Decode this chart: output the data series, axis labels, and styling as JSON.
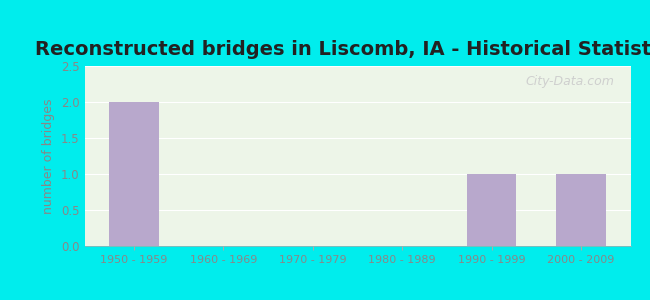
{
  "title": "Reconstructed bridges in Liscomb, IA - Historical Statistics",
  "categories": [
    "1950 - 1959",
    "1960 - 1969",
    "1970 - 1979",
    "1980 - 1989",
    "1990 - 1999",
    "2000 - 2009"
  ],
  "values": [
    2,
    0,
    0,
    0,
    1,
    1
  ],
  "bar_color": "#b8a8cc",
  "ylabel": "number of bridges",
  "ylim": [
    0,
    2.5
  ],
  "yticks": [
    0,
    0.5,
    1,
    1.5,
    2,
    2.5
  ],
  "background_outer": "#00eded",
  "background_inner": "#edf5e8",
  "title_fontsize": 14,
  "title_color": "#222222",
  "tick_label_color": "#888888",
  "ylabel_color": "#888888",
  "watermark": "City-Data.com"
}
